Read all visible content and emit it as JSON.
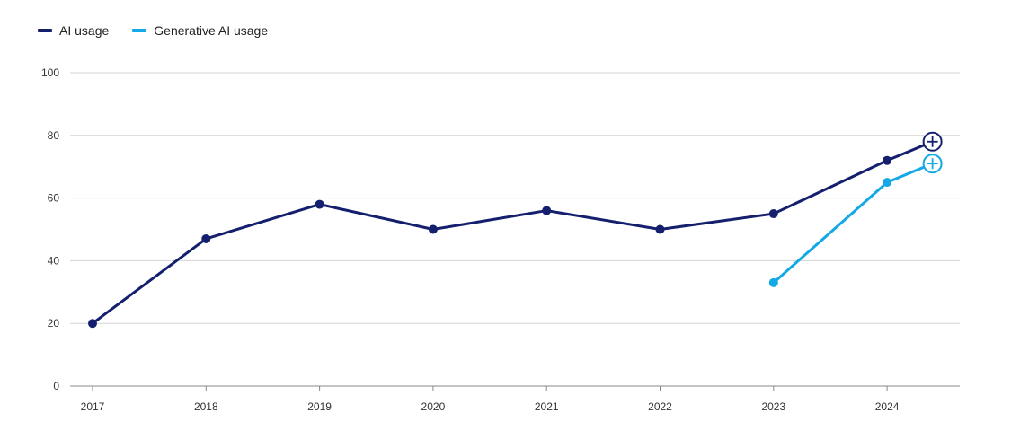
{
  "chart_data": {
    "type": "line",
    "title": "",
    "xlabel": "",
    "ylabel": "",
    "ylim": [
      0,
      100
    ],
    "yticks": [
      0,
      20,
      40,
      60,
      80,
      100
    ],
    "xticks": [
      "2017",
      "2018",
      "2019",
      "2020",
      "2021",
      "2022",
      "2023",
      "2024"
    ],
    "grid": true,
    "legend": "top-left",
    "series": [
      {
        "name": "AI usage",
        "color": "#14206e",
        "points": [
          {
            "x": 2017,
            "y": 20
          },
          {
            "x": 2018,
            "y": 47
          },
          {
            "x": 2019,
            "y": 58
          },
          {
            "x": 2020,
            "y": 50
          },
          {
            "x": 2021,
            "y": 56
          },
          {
            "x": 2022,
            "y": 50
          },
          {
            "x": 2023,
            "y": 55
          },
          {
            "x": 2024,
            "y": 72
          },
          {
            "x": 2024.4,
            "y": 78,
            "marker": "plus"
          }
        ]
      },
      {
        "name": "Generative AI usage",
        "color": "#13a8e6",
        "points": [
          {
            "x": 2023,
            "y": 33
          },
          {
            "x": 2024,
            "y": 65
          },
          {
            "x": 2024.4,
            "y": 71,
            "marker": "plus"
          }
        ]
      }
    ]
  }
}
